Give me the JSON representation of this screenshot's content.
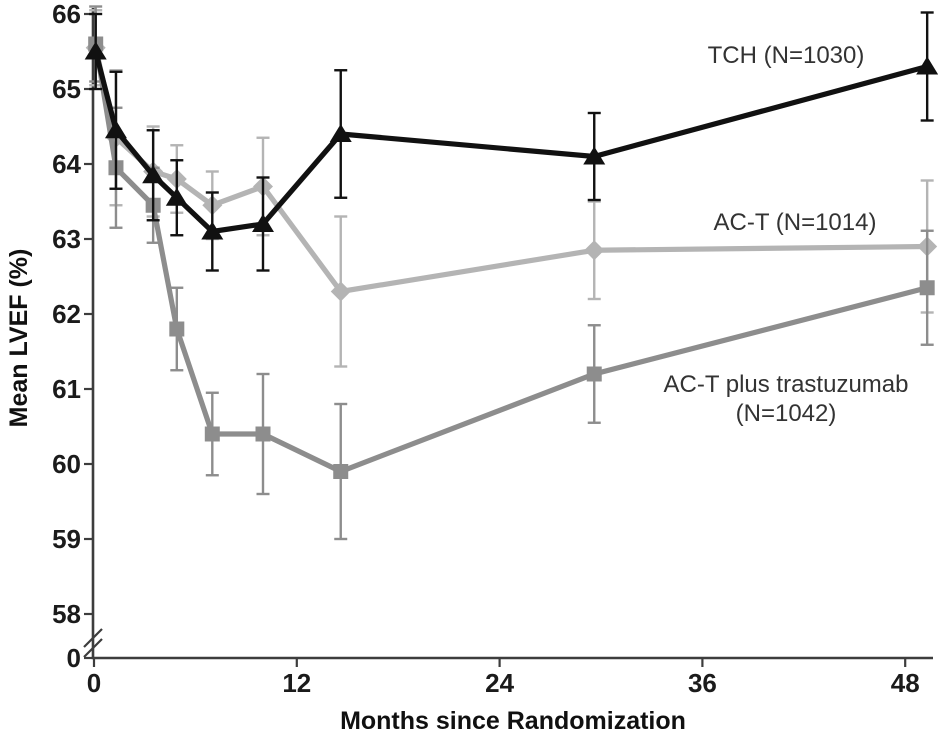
{
  "figure": {
    "background": "#ffffff",
    "axis_color": "#3d3d3d"
  },
  "chart_data": {
    "type": "line",
    "title": "",
    "xlabel": "Months since Randomization",
    "ylabel": "Mean LVEF (%)",
    "x_ticks": [
      0,
      12,
      24,
      36,
      48
    ],
    "y_ticks": [
      66,
      65,
      64,
      63,
      62,
      61,
      60,
      59,
      58
    ],
    "y_break_tick": 0,
    "axis_break": true,
    "xlim": [
      0,
      50
    ],
    "ylim_upper_segment": [
      58,
      66
    ],
    "grid": false,
    "legend_position": "inline-annotations",
    "x": [
      0.1,
      1.3,
      3.5,
      4.9,
      7,
      10,
      14.6,
      29.6,
      49.3
    ],
    "series": [
      {
        "name": "AC-T",
        "n": 1014,
        "label_lines": [
          "AC-T (N=1014)"
        ],
        "marker": "diamond",
        "color": "#b4b4b4",
        "values": [
          65.55,
          64.35,
          63.9,
          63.8,
          63.45,
          63.7,
          62.3,
          62.85,
          62.9
        ],
        "err": [
          0.5,
          0.9,
          0.6,
          0.45,
          0.45,
          0.65,
          1.0,
          0.65,
          0.88
        ]
      },
      {
        "name": "AC-T plus trastuzumab",
        "n": 1042,
        "label_lines": [
          "AC-T plus trastuzumab",
          "(N=1042)"
        ],
        "marker": "square",
        "color": "#8d8d8d",
        "values": [
          65.6,
          63.95,
          63.45,
          61.8,
          60.4,
          60.4,
          59.9,
          61.2,
          62.35
        ],
        "err": [
          0.5,
          0.8,
          0.5,
          0.55,
          0.55,
          0.8,
          0.9,
          0.65,
          0.76
        ]
      },
      {
        "name": "TCH",
        "n": 1030,
        "label_lines": [
          "TCH (N=1030)"
        ],
        "marker": "triangle",
        "color": "#111111",
        "values": [
          65.5,
          64.45,
          63.85,
          63.55,
          63.1,
          63.2,
          64.4,
          64.1,
          65.3
        ],
        "err": [
          0.5,
          0.78,
          0.6,
          0.5,
          0.52,
          0.62,
          0.85,
          0.58,
          0.72
        ]
      }
    ]
  }
}
